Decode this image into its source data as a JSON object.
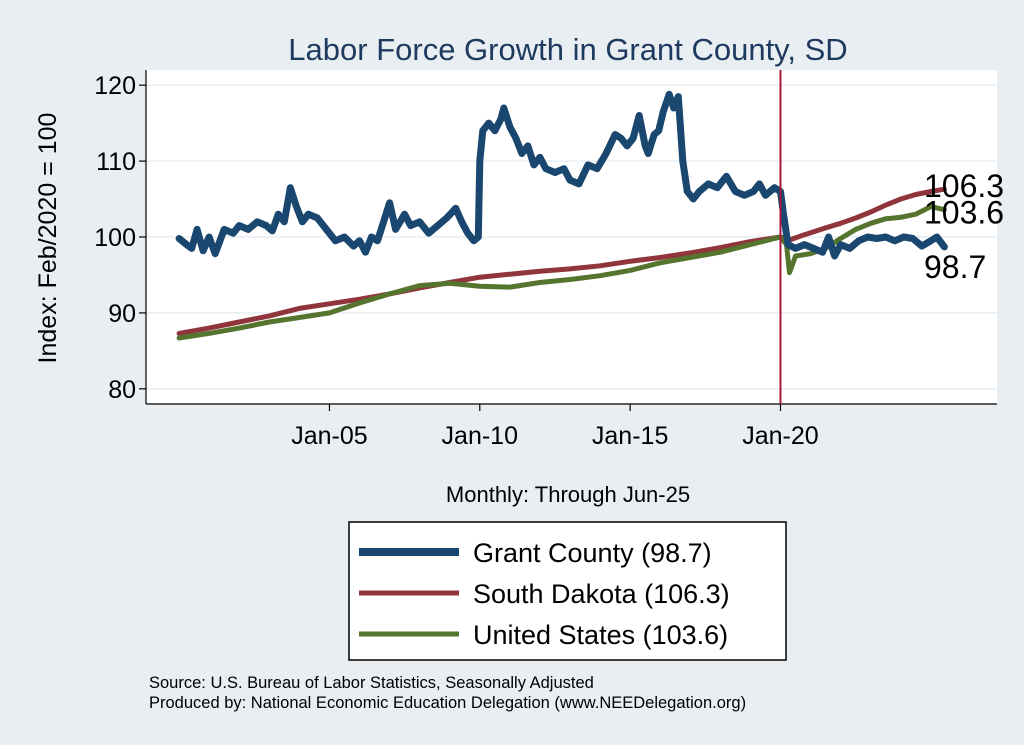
{
  "chart_data": {
    "type": "line",
    "title": "Labor Force Growth in Grant  County, SD",
    "ylabel": "Index: Feb/2020 = 100",
    "xlabel": "Monthly: Through Jun-25",
    "ylim": [
      78,
      122
    ],
    "xlim": [
      1998.9,
      2027.2
    ],
    "yticks": [
      80,
      90,
      100,
      110,
      120
    ],
    "xticks": [
      {
        "label": "Jan-05",
        "value": 2005
      },
      {
        "label": "Jan-10",
        "value": 2010
      },
      {
        "label": "Jan-15",
        "value": 2015
      },
      {
        "label": "Jan-20",
        "value": 2020
      }
    ],
    "vline": {
      "x": 2020.0,
      "color": "#a8163a"
    },
    "series": [
      {
        "name": "Grant  County",
        "legend_label": "Grant  County (98.7)",
        "end_label": "98.7",
        "color": "#1a476f",
        "width": 7,
        "points": [
          [
            2000.0,
            99.8
          ],
          [
            2000.25,
            99.0
          ],
          [
            2000.42,
            98.5
          ],
          [
            2000.6,
            101.0
          ],
          [
            2000.8,
            98.2
          ],
          [
            2001.0,
            100.0
          ],
          [
            2001.2,
            97.8
          ],
          [
            2001.5,
            101.0
          ],
          [
            2001.8,
            100.5
          ],
          [
            2002.0,
            101.5
          ],
          [
            2002.3,
            101.0
          ],
          [
            2002.6,
            102.0
          ],
          [
            2002.9,
            101.5
          ],
          [
            2003.1,
            100.8
          ],
          [
            2003.3,
            103.0
          ],
          [
            2003.5,
            102.0
          ],
          [
            2003.7,
            106.5
          ],
          [
            2003.9,
            104.0
          ],
          [
            2004.1,
            102.0
          ],
          [
            2004.3,
            103.0
          ],
          [
            2004.6,
            102.5
          ],
          [
            2004.9,
            101.0
          ],
          [
            2005.2,
            99.5
          ],
          [
            2005.5,
            100.0
          ],
          [
            2005.8,
            98.8
          ],
          [
            2006.0,
            99.5
          ],
          [
            2006.2,
            98.0
          ],
          [
            2006.4,
            100.0
          ],
          [
            2006.6,
            99.5
          ],
          [
            2006.8,
            102.0
          ],
          [
            2007.0,
            104.5
          ],
          [
            2007.2,
            101.0
          ],
          [
            2007.5,
            103.0
          ],
          [
            2007.7,
            101.5
          ],
          [
            2008.0,
            102.0
          ],
          [
            2008.3,
            100.5
          ],
          [
            2008.6,
            101.5
          ],
          [
            2008.9,
            102.5
          ],
          [
            2009.2,
            103.8
          ],
          [
            2009.4,
            102.0
          ],
          [
            2009.6,
            100.5
          ],
          [
            2009.8,
            99.5
          ],
          [
            2009.95,
            100.0
          ],
          [
            2010.0,
            110.0
          ],
          [
            2010.1,
            114.0
          ],
          [
            2010.3,
            115.0
          ],
          [
            2010.5,
            114.0
          ],
          [
            2010.7,
            115.5
          ],
          [
            2010.8,
            117.0
          ],
          [
            2011.0,
            114.5
          ],
          [
            2011.2,
            113.0
          ],
          [
            2011.4,
            111.0
          ],
          [
            2011.6,
            112.0
          ],
          [
            2011.8,
            109.5
          ],
          [
            2012.0,
            110.5
          ],
          [
            2012.2,
            109.0
          ],
          [
            2012.5,
            108.5
          ],
          [
            2012.8,
            109.0
          ],
          [
            2013.0,
            107.5
          ],
          [
            2013.3,
            107.0
          ],
          [
            2013.6,
            109.5
          ],
          [
            2013.9,
            109.0
          ],
          [
            2014.2,
            111.0
          ],
          [
            2014.5,
            113.5
          ],
          [
            2014.7,
            113.0
          ],
          [
            2014.9,
            112.0
          ],
          [
            2015.0,
            112.5
          ],
          [
            2015.1,
            113.0
          ],
          [
            2015.3,
            116.0
          ],
          [
            2015.5,
            112.0
          ],
          [
            2015.6,
            111.0
          ],
          [
            2015.8,
            113.5
          ],
          [
            2015.95,
            114.0
          ],
          [
            2016.1,
            116.5
          ],
          [
            2016.3,
            118.8
          ],
          [
            2016.45,
            117.0
          ],
          [
            2016.6,
            118.5
          ],
          [
            2016.75,
            110.0
          ],
          [
            2016.9,
            106.0
          ],
          [
            2017.1,
            105.0
          ],
          [
            2017.3,
            106.0
          ],
          [
            2017.6,
            107.0
          ],
          [
            2017.9,
            106.5
          ],
          [
            2018.2,
            108.0
          ],
          [
            2018.5,
            106.0
          ],
          [
            2018.8,
            105.5
          ],
          [
            2019.1,
            106.0
          ],
          [
            2019.3,
            107.0
          ],
          [
            2019.5,
            105.5
          ],
          [
            2019.8,
            106.5
          ],
          [
            2020.0,
            106.0
          ],
          [
            2020.1,
            103.0
          ],
          [
            2020.25,
            99.0
          ],
          [
            2020.5,
            98.5
          ],
          [
            2020.8,
            99.0
          ],
          [
            2021.1,
            98.5
          ],
          [
            2021.4,
            98.0
          ],
          [
            2021.6,
            100.0
          ],
          [
            2021.8,
            97.5
          ],
          [
            2022.0,
            99.0
          ],
          [
            2022.3,
            98.5
          ],
          [
            2022.6,
            99.5
          ],
          [
            2022.9,
            100.0
          ],
          [
            2023.2,
            99.8
          ],
          [
            2023.5,
            100.0
          ],
          [
            2023.8,
            99.5
          ],
          [
            2024.1,
            100.0
          ],
          [
            2024.4,
            99.8
          ],
          [
            2024.7,
            98.8
          ],
          [
            2025.0,
            99.5
          ],
          [
            2025.2,
            100.0
          ],
          [
            2025.45,
            98.7
          ]
        ]
      },
      {
        "name": "South Dakota",
        "legend_label": "South Dakota (106.3)",
        "end_label": "106.3",
        "color": "#90353b",
        "width": 5,
        "points": [
          [
            2000.0,
            87.3
          ],
          [
            2001.0,
            88.0
          ],
          [
            2002.0,
            88.8
          ],
          [
            2003.0,
            89.6
          ],
          [
            2004.0,
            90.6
          ],
          [
            2005.0,
            91.2
          ],
          [
            2006.0,
            91.8
          ],
          [
            2007.0,
            92.5
          ],
          [
            2008.0,
            93.3
          ],
          [
            2009.0,
            94.0
          ],
          [
            2010.0,
            94.7
          ],
          [
            2011.0,
            95.1
          ],
          [
            2012.0,
            95.5
          ],
          [
            2013.0,
            95.8
          ],
          [
            2014.0,
            96.2
          ],
          [
            2015.0,
            96.8
          ],
          [
            2016.0,
            97.3
          ],
          [
            2017.0,
            97.9
          ],
          [
            2018.0,
            98.6
          ],
          [
            2019.0,
            99.4
          ],
          [
            2020.0,
            100.0
          ],
          [
            2020.3,
            99.6
          ],
          [
            2020.8,
            100.3
          ],
          [
            2021.5,
            101.2
          ],
          [
            2022.0,
            101.8
          ],
          [
            2022.5,
            102.5
          ],
          [
            2023.0,
            103.3
          ],
          [
            2023.5,
            104.2
          ],
          [
            2024.0,
            105.0
          ],
          [
            2024.5,
            105.6
          ],
          [
            2025.0,
            106.0
          ],
          [
            2025.45,
            106.3
          ]
        ]
      },
      {
        "name": "United States",
        "legend_label": "United States (103.6)",
        "end_label": "103.6",
        "color": "#55752f",
        "width": 5,
        "points": [
          [
            2000.0,
            86.7
          ],
          [
            2001.0,
            87.3
          ],
          [
            2002.0,
            88.0
          ],
          [
            2003.0,
            88.8
          ],
          [
            2004.0,
            89.4
          ],
          [
            2005.0,
            90.0
          ],
          [
            2006.0,
            91.3
          ],
          [
            2007.0,
            92.5
          ],
          [
            2008.0,
            93.6
          ],
          [
            2009.0,
            93.9
          ],
          [
            2010.0,
            93.5
          ],
          [
            2011.0,
            93.4
          ],
          [
            2012.0,
            94.0
          ],
          [
            2013.0,
            94.4
          ],
          [
            2014.0,
            94.9
          ],
          [
            2015.0,
            95.6
          ],
          [
            2016.0,
            96.6
          ],
          [
            2017.0,
            97.3
          ],
          [
            2018.0,
            98.0
          ],
          [
            2019.0,
            99.0
          ],
          [
            2020.0,
            100.0
          ],
          [
            2020.2,
            99.0
          ],
          [
            2020.3,
            95.3
          ],
          [
            2020.5,
            97.5
          ],
          [
            2021.0,
            97.8
          ],
          [
            2021.5,
            98.5
          ],
          [
            2022.0,
            99.8
          ],
          [
            2022.5,
            101.0
          ],
          [
            2023.0,
            101.8
          ],
          [
            2023.5,
            102.4
          ],
          [
            2024.0,
            102.6
          ],
          [
            2024.5,
            103.0
          ],
          [
            2025.0,
            104.0
          ],
          [
            2025.45,
            103.6
          ]
        ]
      }
    ],
    "legend": {
      "placement": "bottom"
    }
  },
  "source_note": {
    "line1": "Source: U.S. Bureau of Labor Statistics, Seasonally Adjusted",
    "line2": "Produced by: National Economic Education Delegation (www.NEEDelegation.org)"
  }
}
